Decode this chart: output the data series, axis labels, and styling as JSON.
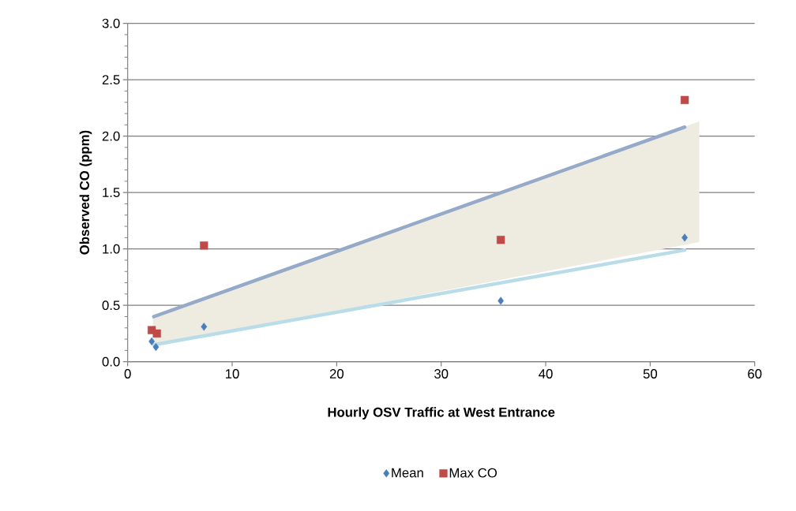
{
  "chart_data": {
    "type": "scatter",
    "xlabel": "Hourly OSV Traffic  at West Entrance",
    "ylabel": "Observed  CO  (ppm)",
    "xlim": [
      0,
      60
    ],
    "ylim": [
      0,
      3
    ],
    "xticks": [
      0,
      10,
      20,
      30,
      40,
      50,
      60
    ],
    "yticks": [
      {
        "value": 0,
        "label": "0.0"
      },
      {
        "value": 0.5,
        "label": "0.5"
      },
      {
        "value": 1,
        "label": "1.0"
      },
      {
        "value": 1.5,
        "label": "1.5"
      },
      {
        "value": 2,
        "label": "2.0"
      },
      {
        "value": 2.5,
        "label": "2.5"
      },
      {
        "value": 3,
        "label": "3.0"
      }
    ],
    "grid": "y",
    "legend": "bottom",
    "series": [
      {
        "type": "line",
        "color": "#eeebe0",
        "x": [
          2.4,
          54.7
        ],
        "values": [
          null,
          null
        ],
        "lower": [
          0.14,
          1.06
        ],
        "upper": [
          0.41,
          2.13
        ]
      },
      {
        "type": "line",
        "color": "#95a9c8",
        "x": [
          2.5,
          53.3
        ],
        "values": [
          0.4,
          2.08
        ]
      },
      {
        "type": "line",
        "color": "#b9dde8",
        "x": [
          2.5,
          53.3
        ],
        "values": [
          0.15,
          0.99
        ]
      },
      {
        "name": "Mean",
        "color": "#4a7ebb",
        "marker": "diamond",
        "x": [
          2.3,
          2.7,
          7.3,
          35.7,
          53.3
        ],
        "values": [
          0.18,
          0.13,
          0.31,
          0.54,
          1.1
        ]
      },
      {
        "name": "Max CO",
        "color": "#be4b48",
        "marker": "square",
        "x": [
          2.3,
          2.8,
          7.3,
          35.7,
          53.3
        ],
        "values": [
          0.28,
          0.25,
          1.03,
          1.08,
          2.32
        ]
      }
    ]
  }
}
